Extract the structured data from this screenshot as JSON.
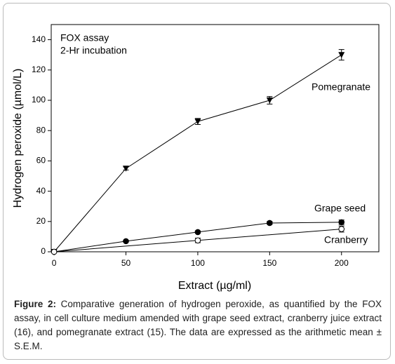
{
  "chart_data": {
    "type": "line",
    "annotations": [
      "FOX assay",
      "2-Hr incubation"
    ],
    "x_label": "Extract (µg/ml)",
    "y_label": "Hydrogen peroxide (µmol/L)",
    "xlim": [
      -2,
      226
    ],
    "xticks": [
      0,
      50,
      100,
      150,
      200
    ],
    "ylim": [
      0,
      150
    ],
    "yticks": [
      0,
      20,
      40,
      60,
      80,
      100,
      120,
      140
    ],
    "series": [
      {
        "name": "Pomegranate",
        "color": "#000000",
        "marker": "triangle-down",
        "x": [
          0,
          50,
          100,
          150,
          200
        ],
        "values": [
          0,
          55,
          86,
          100,
          130
        ],
        "errors": [
          0,
          1,
          2,
          2.5,
          3.5
        ]
      },
      {
        "name": "Grape seed",
        "color": "#000000",
        "marker": "circle",
        "x": [
          0,
          50,
          100,
          150,
          200
        ],
        "values": [
          0,
          7,
          13,
          19,
          19.5
        ],
        "errors": [
          0,
          0.5,
          0.8,
          1,
          1.5
        ]
      },
      {
        "name": "Cranberry",
        "color": "#000000",
        "marker": "open-circle",
        "x": [
          0,
          100,
          200
        ],
        "values": [
          0,
          7.5,
          15
        ],
        "errors": [
          0,
          1.5,
          2
        ]
      }
    ]
  },
  "caption": {
    "label": "Figure 2:",
    "text": "Comparative generation of hydrogen peroxide, as quantified by the FOX assay, in cell culture medium amended with grape seed extract, cranberry juice extract (16), and pomegranate extract (15). The data are expressed as the arithmetic mean ± S.E.M."
  }
}
